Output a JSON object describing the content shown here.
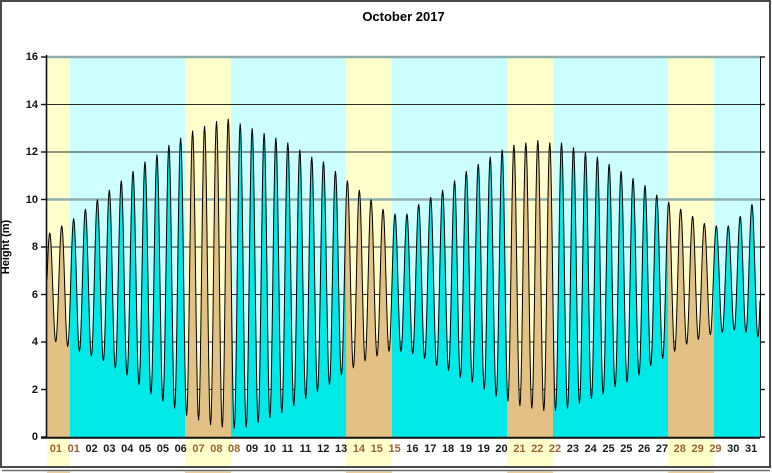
{
  "title": "October 2017",
  "y_axis": {
    "label": "Height (m)"
  },
  "colors": {
    "weekday_band": "#CCFFFF",
    "weekend_band": "#FFFFCC",
    "weekday_fill": "#00E9E9",
    "weekend_fill": "#E3C184",
    "curve": "#000000",
    "gridline": "#2B2B2B",
    "major_gridline": "#8FAFAF",
    "axis": "#111111",
    "weekday_label": "#1A1A1A",
    "weekend_label": "#9A6430",
    "panel_border": "#4A4A4A"
  },
  "chart_data": {
    "type": "area",
    "title": "October 2017",
    "ylabel": "Height (m)",
    "ylim": [
      0,
      16
    ],
    "y_tick_step": 2,
    "y_tick_labels": [
      "0",
      "2",
      "4",
      "6",
      "8",
      "10",
      "12",
      "14",
      "16"
    ],
    "xlim_days": [
      0,
      31
    ],
    "days_in_month": 31,
    "grid": true,
    "weekend_days": [
      1,
      7,
      8,
      14,
      15,
      21,
      22,
      28,
      29
    ],
    "x_tick_labels": [
      {
        "label": "01",
        "weekend": true
      },
      {
        "label": "01",
        "weekend": true
      },
      {
        "label": "02",
        "weekend": false
      },
      {
        "label": "03",
        "weekend": false
      },
      {
        "label": "04",
        "weekend": false
      },
      {
        "label": "05",
        "weekend": false
      },
      {
        "label": "05",
        "weekend": false
      },
      {
        "label": "06",
        "weekend": false
      },
      {
        "label": "07",
        "weekend": true
      },
      {
        "label": "08",
        "weekend": true
      },
      {
        "label": "08",
        "weekend": true
      },
      {
        "label": "09",
        "weekend": false
      },
      {
        "label": "10",
        "weekend": false
      },
      {
        "label": "11",
        "weekend": false
      },
      {
        "label": "11",
        "weekend": false
      },
      {
        "label": "12",
        "weekend": false
      },
      {
        "label": "13",
        "weekend": false
      },
      {
        "label": "14",
        "weekend": true
      },
      {
        "label": "15",
        "weekend": true
      },
      {
        "label": "15",
        "weekend": true
      },
      {
        "label": "16",
        "weekend": false
      },
      {
        "label": "17",
        "weekend": false
      },
      {
        "label": "18",
        "weekend": false
      },
      {
        "label": "19",
        "weekend": false
      },
      {
        "label": "19",
        "weekend": false
      },
      {
        "label": "20",
        "weekend": false
      },
      {
        "label": "21",
        "weekend": true
      },
      {
        "label": "22",
        "weekend": true
      },
      {
        "label": "22",
        "weekend": true
      },
      {
        "label": "23",
        "weekend": false
      },
      {
        "label": "24",
        "weekend": false
      },
      {
        "label": "25",
        "weekend": false
      },
      {
        "label": "25",
        "weekend": false
      },
      {
        "label": "26",
        "weekend": false
      },
      {
        "label": "27",
        "weekend": false
      },
      {
        "label": "28",
        "weekend": true
      },
      {
        "label": "29",
        "weekend": true
      },
      {
        "label": "29",
        "weekend": true
      },
      {
        "label": "30",
        "weekend": false
      },
      {
        "label": "31",
        "weekend": false
      }
    ],
    "tide_extremes_day_height": [
      [
        -0.14,
        4.1
      ],
      [
        0.12,
        8.6
      ],
      [
        0.38,
        4.0
      ],
      [
        0.64,
        8.9
      ],
      [
        0.9,
        3.8
      ],
      [
        1.16,
        9.2
      ],
      [
        1.41,
        3.6
      ],
      [
        1.67,
        9.6
      ],
      [
        1.93,
        3.4
      ],
      [
        2.19,
        10.0
      ],
      [
        2.45,
        3.2
      ],
      [
        2.71,
        10.4
      ],
      [
        2.97,
        2.9
      ],
      [
        3.23,
        10.8
      ],
      [
        3.48,
        2.6
      ],
      [
        3.74,
        11.2
      ],
      [
        4.0,
        2.2
      ],
      [
        4.26,
        11.6
      ],
      [
        4.52,
        1.8
      ],
      [
        4.78,
        11.9
      ],
      [
        5.04,
        1.5
      ],
      [
        5.3,
        12.3
      ],
      [
        5.55,
        1.2
      ],
      [
        5.81,
        12.6
      ],
      [
        6.07,
        0.9
      ],
      [
        6.33,
        12.9
      ],
      [
        6.59,
        0.7
      ],
      [
        6.85,
        13.1
      ],
      [
        7.11,
        0.5
      ],
      [
        7.37,
        13.3
      ],
      [
        7.62,
        0.4
      ],
      [
        7.88,
        13.4
      ],
      [
        8.14,
        0.35
      ],
      [
        8.4,
        13.2
      ],
      [
        8.66,
        0.4
      ],
      [
        8.92,
        13.0
      ],
      [
        9.18,
        0.6
      ],
      [
        9.44,
        12.8
      ],
      [
        9.69,
        0.8
      ],
      [
        9.95,
        12.6
      ],
      [
        10.21,
        1.0
      ],
      [
        10.47,
        12.4
      ],
      [
        10.73,
        1.3
      ],
      [
        10.99,
        12.1
      ],
      [
        11.25,
        1.6
      ],
      [
        11.51,
        11.8
      ],
      [
        11.76,
        1.9
      ],
      [
        12.02,
        11.6
      ],
      [
        12.28,
        2.2
      ],
      [
        12.54,
        11.2
      ],
      [
        12.8,
        2.6
      ],
      [
        13.06,
        10.8
      ],
      [
        13.32,
        2.9
      ],
      [
        13.58,
        10.4
      ],
      [
        13.83,
        3.2
      ],
      [
        14.09,
        10.0
      ],
      [
        14.35,
        3.4
      ],
      [
        14.61,
        9.6
      ],
      [
        14.87,
        3.6
      ],
      [
        15.13,
        9.4
      ],
      [
        15.39,
        3.6
      ],
      [
        15.65,
        9.4
      ],
      [
        15.9,
        3.5
      ],
      [
        16.16,
        9.8
      ],
      [
        16.42,
        3.3
      ],
      [
        16.68,
        10.1
      ],
      [
        16.94,
        3.0
      ],
      [
        17.2,
        10.4
      ],
      [
        17.46,
        2.8
      ],
      [
        17.72,
        10.8
      ],
      [
        17.97,
        2.5
      ],
      [
        18.23,
        11.2
      ],
      [
        18.49,
        2.3
      ],
      [
        18.75,
        11.5
      ],
      [
        19.01,
        2.0
      ],
      [
        19.27,
        11.8
      ],
      [
        19.53,
        1.7
      ],
      [
        19.79,
        12.1
      ],
      [
        20.04,
        1.5
      ],
      [
        20.3,
        12.3
      ],
      [
        20.56,
        1.3
      ],
      [
        20.82,
        12.4
      ],
      [
        21.08,
        1.2
      ],
      [
        21.34,
        12.5
      ],
      [
        21.6,
        1.1
      ],
      [
        21.86,
        12.4
      ],
      [
        22.11,
        1.1
      ],
      [
        22.37,
        12.4
      ],
      [
        22.63,
        1.2
      ],
      [
        22.89,
        12.2
      ],
      [
        23.15,
        1.4
      ],
      [
        23.41,
        12.0
      ],
      [
        23.67,
        1.6
      ],
      [
        23.93,
        11.8
      ],
      [
        24.18,
        1.8
      ],
      [
        24.44,
        11.5
      ],
      [
        24.7,
        2.1
      ],
      [
        24.96,
        11.2
      ],
      [
        25.22,
        2.3
      ],
      [
        25.48,
        10.9
      ],
      [
        25.74,
        2.6
      ],
      [
        26.0,
        10.6
      ],
      [
        26.25,
        3.0
      ],
      [
        26.51,
        10.2
      ],
      [
        26.77,
        3.3
      ],
      [
        27.03,
        9.9
      ],
      [
        27.29,
        3.6
      ],
      [
        27.55,
        9.6
      ],
      [
        27.81,
        3.9
      ],
      [
        28.07,
        9.3
      ],
      [
        28.32,
        4.1
      ],
      [
        28.58,
        9.0
      ],
      [
        28.84,
        4.3
      ],
      [
        29.1,
        8.9
      ],
      [
        29.36,
        4.4
      ],
      [
        29.62,
        8.9
      ],
      [
        29.88,
        4.5
      ],
      [
        30.14,
        9.3
      ],
      [
        30.39,
        4.4
      ],
      [
        30.65,
        9.8
      ],
      [
        30.91,
        4.2
      ],
      [
        31.17,
        9.9
      ]
    ]
  }
}
